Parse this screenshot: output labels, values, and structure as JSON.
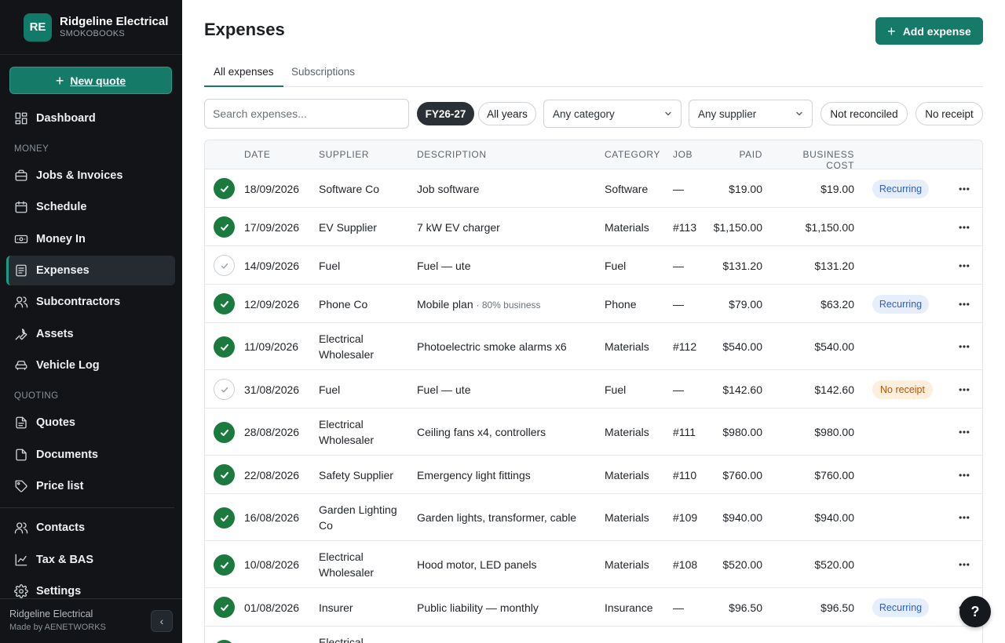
{
  "brand": {
    "initials": "RE",
    "name": "Ridgeline Electrical",
    "sub": "SMOKOBOOKS"
  },
  "sidebar": {
    "new_quote": "New quote",
    "sections": {
      "money": "MONEY",
      "quoting": "QUOTING"
    },
    "items": {
      "dashboard": "Dashboard",
      "jobs": "Jobs & Invoices",
      "schedule": "Schedule",
      "money_in": "Money In",
      "expenses": "Expenses",
      "subcontractors": "Subcontractors",
      "assets": "Assets",
      "vehicle_log": "Vehicle Log",
      "quotes": "Quotes",
      "documents": "Documents",
      "price_list": "Price list",
      "contacts": "Contacts",
      "tax": "Tax & BAS",
      "settings": "Settings"
    },
    "footer": {
      "name": "Ridgeline Electrical",
      "made_by": "Made by AENETWORKS"
    }
  },
  "header": {
    "title": "Expenses",
    "add_button": "Add expense"
  },
  "tabs": {
    "all": "All expenses",
    "subscriptions": "Subscriptions"
  },
  "filters": {
    "search_placeholder": "Search expenses...",
    "fy": "FY26-27",
    "all_years": "All years",
    "category": "Any category",
    "supplier": "Any supplier",
    "not_reconciled": "Not reconciled",
    "no_receipt": "No receipt"
  },
  "table": {
    "columns": {
      "date": "DATE",
      "supplier": "SUPPLIER",
      "description": "DESCRIPTION",
      "category": "CATEGORY",
      "job": "JOB",
      "paid": "PAID",
      "business_cost": "BUSINESS COST"
    },
    "rows": [
      {
        "reconciled": true,
        "date": "18/09/2026",
        "supplier": "Software Co",
        "description": "Job software",
        "note": "",
        "category": "Software",
        "job": "—",
        "paid": "$19.00",
        "business_cost": "$19.00",
        "badge": "Recurring"
      },
      {
        "reconciled": true,
        "date": "17/09/2026",
        "supplier": "EV Supplier",
        "description": "7 kW EV charger",
        "note": "",
        "category": "Materials",
        "job": "#113",
        "paid": "$1,150.00",
        "business_cost": "$1,150.00",
        "badge": ""
      },
      {
        "reconciled": false,
        "date": "14/09/2026",
        "supplier": "Fuel",
        "description": "Fuel — ute",
        "note": "",
        "category": "Fuel",
        "job": "—",
        "paid": "$131.20",
        "business_cost": "$131.20",
        "badge": ""
      },
      {
        "reconciled": true,
        "date": "12/09/2026",
        "supplier": "Phone Co",
        "description": "Mobile plan",
        "note": "· 80% business",
        "category": "Phone",
        "job": "—",
        "paid": "$79.00",
        "business_cost": "$63.20",
        "badge": "Recurring"
      },
      {
        "reconciled": true,
        "date": "11/09/2026",
        "supplier": "Electrical Wholesaler",
        "description": "Photoelectric smoke alarms x6",
        "note": "",
        "category": "Materials",
        "job": "#112",
        "paid": "$540.00",
        "business_cost": "$540.00",
        "badge": ""
      },
      {
        "reconciled": false,
        "date": "31/08/2026",
        "supplier": "Fuel",
        "description": "Fuel — ute",
        "note": "",
        "category": "Fuel",
        "job": "—",
        "paid": "$142.60",
        "business_cost": "$142.60",
        "badge": "No receipt"
      },
      {
        "reconciled": true,
        "date": "28/08/2026",
        "supplier": "Electrical Wholesaler",
        "description": "Ceiling fans x4, controllers",
        "note": "",
        "category": "Materials",
        "job": "#111",
        "paid": "$980.00",
        "business_cost": "$980.00",
        "badge": ""
      },
      {
        "reconciled": true,
        "date": "22/08/2026",
        "supplier": "Safety Supplier",
        "description": "Emergency light fittings",
        "note": "",
        "category": "Materials",
        "job": "#110",
        "paid": "$760.00",
        "business_cost": "$760.00",
        "badge": ""
      },
      {
        "reconciled": true,
        "date": "16/08/2026",
        "supplier": "Garden Lighting Co",
        "description": "Garden lights, transformer, cable",
        "note": "",
        "category": "Materials",
        "job": "#109",
        "paid": "$940.00",
        "business_cost": "$940.00",
        "badge": ""
      },
      {
        "reconciled": true,
        "date": "10/08/2026",
        "supplier": "Electrical Wholesaler",
        "description": "Hood motor, LED panels",
        "note": "",
        "category": "Materials",
        "job": "#108",
        "paid": "$520.00",
        "business_cost": "$520.00",
        "badge": ""
      },
      {
        "reconciled": true,
        "date": "01/08/2026",
        "supplier": "Insurer",
        "description": "Public liability — monthly",
        "note": "",
        "category": "Insurance",
        "job": "—",
        "paid": "$96.50",
        "business_cost": "$96.50",
        "badge": "Recurring"
      },
      {
        "reconciled": true,
        "date": "",
        "supplier": "Electrical",
        "description": "",
        "note": "",
        "category": "",
        "job": "",
        "paid": "",
        "business_cost": "",
        "badge": ""
      }
    ]
  },
  "help": {
    "label": "?"
  }
}
